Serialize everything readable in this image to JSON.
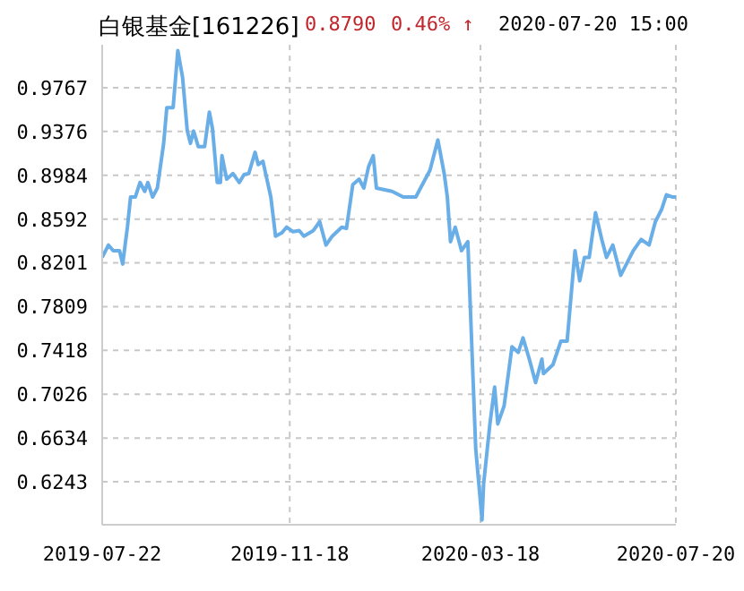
{
  "chart_data": {
    "type": "line",
    "title": "白银基金[161226]",
    "annotations": [
      "0.8790",
      "0.46% ↑",
      "2020-07-20 15:00"
    ],
    "x": [
      "2019-07-22",
      "2019-07-26",
      "2019-07-29",
      "2019-08-02",
      "2019-08-04",
      "2019-08-07",
      "2019-08-09",
      "2019-08-12",
      "2019-08-15",
      "2019-08-18",
      "2019-08-20",
      "2019-08-23",
      "2019-08-26",
      "2019-08-30",
      "2019-09-01",
      "2019-09-05",
      "2019-09-08",
      "2019-09-11",
      "2019-09-14",
      "2019-09-16",
      "2019-09-18",
      "2019-09-21",
      "2019-09-25",
      "2019-09-28",
      "2019-09-30",
      "2019-10-03",
      "2019-10-05",
      "2019-10-06",
      "2019-10-09",
      "2019-10-13",
      "2019-10-17",
      "2019-10-20",
      "2019-10-23",
      "2019-10-27",
      "2019-10-29",
      "2019-11-01",
      "2019-11-06",
      "2019-11-09",
      "2019-11-13",
      "2019-11-16",
      "2019-11-20",
      "2019-11-24",
      "2019-11-27",
      "2019-12-03",
      "2019-12-07",
      "2019-12-11",
      "2019-12-15",
      "2019-12-21",
      "2019-12-24",
      "2019-12-28",
      "2020-01-01",
      "2020-01-04",
      "2020-01-07",
      "2020-01-10",
      "2020-01-12",
      "2020-01-22",
      "2020-01-29",
      "2020-02-06",
      "2020-02-15",
      "2020-02-20",
      "2020-02-24",
      "2020-02-26",
      "2020-02-28",
      "2020-03-02",
      "2020-03-06",
      "2020-03-10",
      "2020-03-15",
      "2020-03-19",
      "2020-03-20",
      "2020-03-24",
      "2020-03-27",
      "2020-03-29",
      "2020-04-02",
      "2020-04-07",
      "2020-04-11",
      "2020-04-14",
      "2020-04-18",
      "2020-04-22",
      "2020-04-26",
      "2020-04-27",
      "2020-05-03",
      "2020-05-08",
      "2020-05-12",
      "2020-05-17",
      "2020-05-20",
      "2020-05-23",
      "2020-05-26",
      "2020-05-30",
      "2020-06-03",
      "2020-06-06",
      "2020-06-10",
      "2020-06-15",
      "2020-06-19",
      "2020-06-23",
      "2020-06-28",
      "2020-07-03",
      "2020-07-07",
      "2020-07-11",
      "2020-07-14",
      "2020-07-18",
      "2020-07-20"
    ],
    "series": [
      {
        "color": "#6aaee8",
        "values": [
          0.825,
          0.836,
          0.831,
          0.831,
          0.819,
          0.852,
          0.879,
          0.879,
          0.892,
          0.884,
          0.892,
          0.879,
          0.887,
          0.927,
          0.959,
          0.959,
          1.01,
          0.986,
          0.938,
          0.927,
          0.938,
          0.924,
          0.924,
          0.955,
          0.94,
          0.892,
          0.892,
          0.916,
          0.895,
          0.9,
          0.892,
          0.899,
          0.9,
          0.919,
          0.908,
          0.911,
          0.879,
          0.844,
          0.847,
          0.852,
          0.848,
          0.849,
          0.844,
          0.849,
          0.857,
          0.836,
          0.844,
          0.852,
          0.851,
          0.89,
          0.895,
          0.887,
          0.906,
          0.916,
          0.887,
          0.884,
          0.879,
          0.879,
          0.903,
          0.93,
          0.9,
          0.879,
          0.839,
          0.852,
          0.831,
          0.839,
          0.654,
          0.59,
          0.622,
          0.676,
          0.709,
          0.676,
          0.692,
          0.745,
          0.74,
          0.753,
          0.734,
          0.713,
          0.734,
          0.721,
          0.729,
          0.75,
          0.75,
          0.831,
          0.804,
          0.825,
          0.825,
          0.865,
          0.841,
          0.825,
          0.836,
          0.809,
          0.82,
          0.831,
          0.841,
          0.836,
          0.857,
          0.868,
          0.881,
          0.879,
          0.879
        ]
      }
    ],
    "xlim": [
      "2019-07-22",
      "2020-07-20"
    ],
    "xticks": [
      "2019-07-22",
      "2019-11-18",
      "2020-03-18",
      "2020-07-20"
    ],
    "ylim": [
      0.5858,
      1.0152
    ],
    "yticks": [
      0.6243,
      0.6634,
      0.7026,
      0.7418,
      0.7809,
      0.8201,
      0.8592,
      0.8984,
      0.9376,
      0.9767
    ],
    "grid": true,
    "legend": false,
    "marker": "none",
    "line_style": "solid"
  }
}
